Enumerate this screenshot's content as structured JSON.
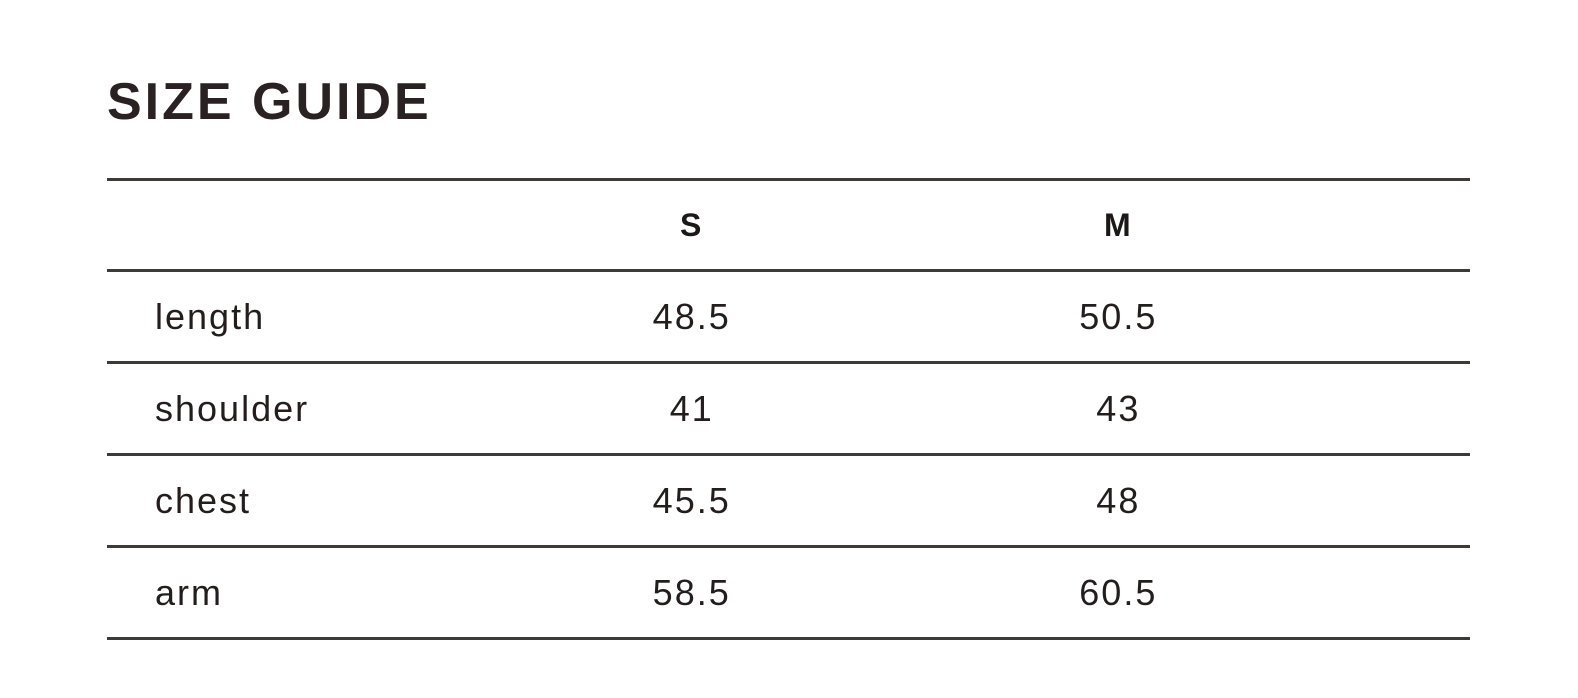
{
  "page": {
    "background_color": "#ffffff",
    "text_color": "#241d1d",
    "rule_color": "#3e3a3a"
  },
  "size_guide": {
    "title": "SIZE GUIDE",
    "columns": [
      "S",
      "M"
    ],
    "rows": [
      {
        "label": "length",
        "values": [
          "48.5",
          "50.5"
        ]
      },
      {
        "label": "shoulder",
        "values": [
          "41",
          "43"
        ]
      },
      {
        "label": "chest",
        "values": [
          "45.5",
          "48"
        ]
      },
      {
        "label": "arm",
        "values": [
          "58.5",
          "60.5"
        ]
      }
    ]
  }
}
